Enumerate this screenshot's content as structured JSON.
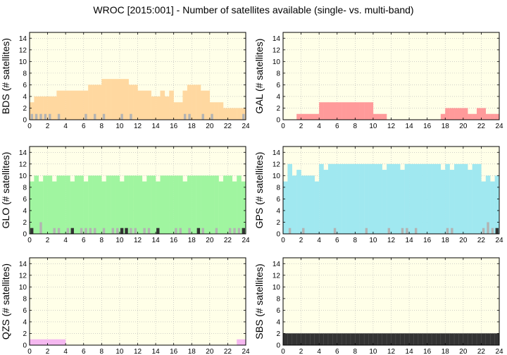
{
  "title": "WROC [2015:001] - Number of satellites available (single- vs. multi-band)",
  "colors": {
    "background": "#ffffe8",
    "grid": "#b3b3b3",
    "single_band_marker": "#b3b3b3",
    "dark_marker": "#333333"
  },
  "chart_data": [
    {
      "type": "bar",
      "ylabel": "BDS (# satellites)",
      "color": "#ffd8a0",
      "xlim": [
        0,
        24
      ],
      "ylim": [
        0,
        15
      ],
      "xticks": [
        0,
        2,
        4,
        6,
        8,
        10,
        12,
        14,
        16,
        18,
        20,
        22,
        24
      ],
      "yticks": [
        0,
        2,
        4,
        6,
        8,
        10,
        12,
        14
      ],
      "grid": true,
      "x": [
        0,
        0.5,
        1,
        1.5,
        2,
        2.5,
        3,
        3.5,
        4,
        4.5,
        5,
        5.5,
        6,
        6.5,
        7,
        7.5,
        8,
        8.5,
        9,
        9.5,
        10,
        10.5,
        11,
        11.5,
        12,
        12.5,
        13,
        13.5,
        14,
        14.5,
        15,
        15.5,
        16,
        16.5,
        17,
        17.5,
        18,
        18.5,
        19,
        19.5,
        20,
        20.5,
        21,
        21.5,
        22,
        22.5,
        23,
        23.5
      ],
      "values": [
        3,
        4,
        4,
        4,
        4,
        4,
        5,
        5,
        5,
        5,
        5,
        5,
        5,
        6,
        6,
        6,
        7,
        7,
        7,
        7,
        7,
        7,
        6,
        6,
        5,
        5,
        5,
        4,
        4,
        5,
        4,
        5,
        3,
        3,
        5,
        6,
        6,
        6,
        5,
        5,
        3,
        3,
        3,
        2,
        2,
        2,
        2,
        2
      ],
      "single_band": [
        1,
        1,
        1,
        1,
        1,
        0,
        1,
        0,
        0,
        0,
        0,
        0,
        1,
        0,
        1,
        0,
        1,
        0,
        0,
        0,
        1,
        0,
        1,
        0,
        0,
        0,
        0,
        0,
        0,
        0,
        0,
        0,
        0,
        0,
        1,
        1,
        0,
        0,
        1,
        0,
        1,
        0,
        0,
        0,
        0,
        0,
        0,
        1
      ],
      "dark": []
    },
    {
      "type": "bar",
      "ylabel": "GAL (# satellites)",
      "color": "#ff9a9a",
      "xlim": [
        0,
        24
      ],
      "ylim": [
        0,
        15
      ],
      "xticks": [
        0,
        2,
        4,
        6,
        8,
        10,
        12,
        14,
        16,
        18,
        20,
        22,
        24
      ],
      "yticks": [
        0,
        2,
        4,
        6,
        8,
        10,
        12,
        14
      ],
      "grid": true,
      "x": [
        0,
        0.5,
        1,
        1.5,
        2,
        2.5,
        3,
        3.5,
        4,
        4.5,
        5,
        5.5,
        6,
        6.5,
        7,
        7.5,
        8,
        8.5,
        9,
        9.5,
        10,
        10.5,
        11,
        11.5,
        12,
        12.5,
        13,
        13.5,
        14,
        14.5,
        15,
        15.5,
        16,
        16.5,
        17,
        17.5,
        18,
        18.5,
        19,
        19.5,
        20,
        20.5,
        21,
        21.5,
        22,
        22.5,
        23,
        23.5
      ],
      "values": [
        0,
        0,
        0,
        1,
        1,
        1,
        1,
        1,
        3,
        3,
        3,
        3,
        3,
        3,
        3,
        3,
        3,
        3,
        3,
        3,
        1,
        1,
        1,
        0,
        0,
        0,
        0,
        0,
        0,
        0,
        0,
        0,
        0,
        0,
        0,
        1,
        2,
        2,
        2,
        2,
        2,
        1,
        1,
        2,
        2,
        1,
        1,
        1
      ],
      "single_band": [],
      "dark": []
    },
    {
      "type": "bar",
      "ylabel": "GLO (# satellites)",
      "color": "#a0f5a0",
      "xlim": [
        0,
        24
      ],
      "ylim": [
        0,
        15
      ],
      "xticks": [
        0,
        2,
        4,
        6,
        8,
        10,
        12,
        14,
        16,
        18,
        20,
        22,
        24
      ],
      "yticks": [
        0,
        2,
        4,
        6,
        8,
        10,
        12,
        14
      ],
      "grid": true,
      "x": [
        0,
        0.5,
        1,
        1.5,
        2,
        2.5,
        3,
        3.5,
        4,
        4.5,
        5,
        5.5,
        6,
        6.5,
        7,
        7.5,
        8,
        8.5,
        9,
        9.5,
        10,
        10.5,
        11,
        11.5,
        12,
        12.5,
        13,
        13.5,
        14,
        14.5,
        15,
        15.5,
        16,
        16.5,
        17,
        17.5,
        18,
        18.5,
        19,
        19.5,
        20,
        20.5,
        21,
        21.5,
        22,
        22.5,
        23,
        23.5
      ],
      "values": [
        9,
        10,
        9,
        10,
        10,
        9,
        10,
        10,
        10,
        9,
        10,
        10,
        9,
        10,
        10,
        10,
        9,
        10,
        10,
        10,
        9,
        10,
        10,
        10,
        10,
        9,
        10,
        10,
        9,
        10,
        10,
        10,
        10,
        10,
        9,
        10,
        10,
        10,
        10,
        10,
        10,
        10,
        9,
        10,
        10,
        9,
        10,
        9
      ],
      "single_band": [
        1,
        0,
        2,
        0,
        0,
        1,
        1,
        0,
        1,
        0,
        0,
        1,
        1,
        1,
        1,
        0,
        1,
        0,
        1,
        1,
        0,
        1,
        1,
        1,
        0,
        1,
        1,
        0,
        1,
        0,
        0,
        0,
        1,
        1,
        0,
        1,
        0,
        0,
        1,
        0,
        0,
        1,
        0,
        0,
        1,
        1,
        1,
        0
      ],
      "dark": [
        1,
        0,
        0,
        0,
        0,
        0,
        0,
        0,
        0,
        1,
        0,
        0,
        0,
        0,
        0,
        0,
        0,
        0,
        0,
        0,
        1,
        1,
        0,
        0,
        0,
        0,
        0,
        0,
        1,
        0,
        0,
        0,
        0,
        0,
        0,
        0,
        0,
        1,
        0,
        0,
        0,
        0,
        0,
        0,
        0,
        0,
        0,
        1
      ]
    },
    {
      "type": "bar",
      "ylabel": "GPS (# satellites)",
      "color": "#a0e8f0",
      "xlim": [
        0,
        24
      ],
      "ylim": [
        0,
        15
      ],
      "xticks": [
        0,
        2,
        4,
        6,
        8,
        10,
        12,
        14,
        16,
        18,
        20,
        22,
        24
      ],
      "yticks": [
        0,
        2,
        4,
        6,
        8,
        10,
        12,
        14
      ],
      "grid": true,
      "x": [
        0,
        0.5,
        1,
        1.5,
        2,
        2.5,
        3,
        3.5,
        4,
        4.5,
        5,
        5.5,
        6,
        6.5,
        7,
        7.5,
        8,
        8.5,
        9,
        9.5,
        10,
        10.5,
        11,
        11.5,
        12,
        12.5,
        13,
        13.5,
        14,
        14.5,
        15,
        15.5,
        16,
        16.5,
        17,
        17.5,
        18,
        18.5,
        19,
        19.5,
        20,
        20.5,
        21,
        21.5,
        22,
        22.5,
        23,
        23.5
      ],
      "values": [
        9,
        12,
        10,
        11,
        10,
        10,
        10,
        9,
        12,
        11,
        12,
        12,
        12,
        12,
        12,
        12,
        12,
        12,
        12,
        12,
        12,
        12,
        11,
        12,
        12,
        12,
        11,
        12,
        12,
        12,
        12,
        12,
        12,
        12,
        12,
        11,
        12,
        11,
        12,
        12,
        12,
        11,
        12,
        12,
        9,
        10,
        9,
        10
      ],
      "single_band": [
        0,
        1,
        0,
        0,
        1,
        0,
        0,
        0,
        0,
        0,
        0,
        1,
        0,
        0,
        0,
        0,
        0,
        0,
        1,
        0,
        0,
        0,
        0,
        1,
        0,
        0,
        1,
        1,
        0,
        1,
        0,
        0,
        0,
        0,
        0,
        0,
        1,
        1,
        0,
        0,
        0,
        0,
        0,
        0,
        1,
        2,
        1,
        0
      ],
      "dark": [
        0,
        0,
        0,
        0,
        0,
        0,
        0,
        0,
        0,
        0,
        0,
        0,
        0,
        0,
        0,
        0,
        0,
        0,
        0,
        0,
        0,
        0,
        0,
        0,
        0,
        0,
        0,
        0,
        0,
        0,
        0,
        0,
        0,
        0,
        0,
        0,
        0,
        0,
        0,
        0,
        0,
        0,
        0,
        0,
        0,
        0,
        0,
        1
      ]
    },
    {
      "type": "bar",
      "ylabel": "QZS (# satellites)",
      "color": "#f5b8f0",
      "xlim": [
        0,
        24
      ],
      "ylim": [
        0,
        15
      ],
      "xticks": [
        0,
        2,
        4,
        6,
        8,
        10,
        12,
        14,
        16,
        18,
        20,
        22,
        24
      ],
      "yticks": [
        0,
        2,
        4,
        6,
        8,
        10,
        12,
        14
      ],
      "grid": true,
      "x": [
        0,
        0.5,
        1,
        1.5,
        2,
        2.5,
        3,
        3.5,
        4,
        4.5,
        5,
        5.5,
        6,
        6.5,
        7,
        7.5,
        8,
        8.5,
        9,
        9.5,
        10,
        10.5,
        11,
        11.5,
        12,
        12.5,
        13,
        13.5,
        14,
        14.5,
        15,
        15.5,
        16,
        16.5,
        17,
        17.5,
        18,
        18.5,
        19,
        19.5,
        20,
        20.5,
        21,
        21.5,
        22,
        22.5,
        23,
        23.5
      ],
      "values": [
        1,
        1,
        1,
        1,
        1,
        1,
        1,
        1,
        0,
        0,
        0,
        0,
        0,
        0,
        0,
        0,
        0,
        0,
        0,
        0,
        0,
        0,
        0,
        0,
        0,
        0,
        0,
        0,
        0,
        0,
        0,
        0,
        0,
        0,
        0,
        0,
        0,
        0,
        0,
        0,
        0,
        0,
        0,
        0,
        0,
        0,
        1,
        1
      ],
      "single_band": [],
      "dark": []
    },
    {
      "type": "bar",
      "ylabel": "SBS (# satellites)",
      "color": "#333333",
      "xlim": [
        0,
        24
      ],
      "ylim": [
        0,
        15
      ],
      "xticks": [
        0,
        2,
        4,
        6,
        8,
        10,
        12,
        14,
        16,
        18,
        20,
        22,
        24
      ],
      "yticks": [
        0,
        2,
        4,
        6,
        8,
        10,
        12,
        14
      ],
      "grid": true,
      "x": [
        0,
        0.5,
        1,
        1.5,
        2,
        2.5,
        3,
        3.5,
        4,
        4.5,
        5,
        5.5,
        6,
        6.5,
        7,
        7.5,
        8,
        8.5,
        9,
        9.5,
        10,
        10.5,
        11,
        11.5,
        12,
        12.5,
        13,
        13.5,
        14,
        14.5,
        15,
        15.5,
        16,
        16.5,
        17,
        17.5,
        18,
        18.5,
        19,
        19.5,
        20,
        20.5,
        21,
        21.5,
        22,
        22.5,
        23,
        23.5
      ],
      "values": [
        2,
        2,
        2,
        2,
        2,
        2,
        2,
        2,
        2,
        2,
        2,
        2,
        2,
        2,
        2,
        2,
        2,
        2,
        2,
        2,
        2,
        2,
        2,
        2,
        2,
        2,
        2,
        2,
        2,
        2,
        2,
        2,
        2,
        2,
        2,
        2,
        2,
        2,
        2,
        2,
        2,
        2,
        2,
        2,
        2,
        2,
        2,
        2
      ],
      "single_band": [],
      "dark": []
    }
  ]
}
